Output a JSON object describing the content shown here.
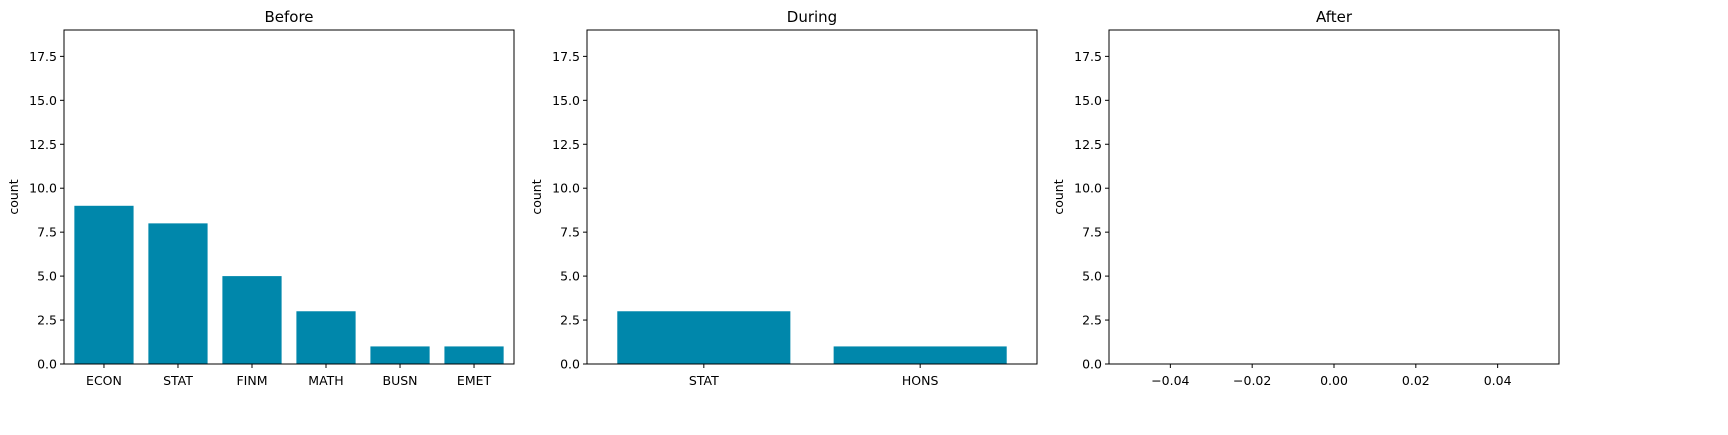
{
  "chart_data": [
    {
      "type": "bar",
      "title": "Before",
      "ylabel": "count",
      "xlabel": "",
      "categories": [
        "ECON",
        "STAT",
        "FINM",
        "MATH",
        "BUSN",
        "EMET"
      ],
      "values": [
        9,
        8,
        5,
        3,
        1,
        1
      ],
      "ylim": [
        0,
        19
      ],
      "yticks": [
        "0.0",
        "2.5",
        "5.0",
        "7.5",
        "10.0",
        "12.5",
        "15.0",
        "17.5"
      ],
      "color": "#0087ab",
      "grid": false
    },
    {
      "type": "bar",
      "title": "During",
      "ylabel": "count",
      "xlabel": "",
      "categories": [
        "STAT",
        "HONS"
      ],
      "values": [
        3,
        1
      ],
      "ylim": [
        0,
        19
      ],
      "yticks": [
        "0.0",
        "2.5",
        "5.0",
        "7.5",
        "10.0",
        "12.5",
        "15.0",
        "17.5"
      ],
      "color": "#0087ab",
      "grid": false
    },
    {
      "type": "bar",
      "title": "After",
      "ylabel": "count",
      "xlabel": "",
      "categories": [],
      "values": [],
      "ylim": [
        0,
        19
      ],
      "xlim": [
        -0.055,
        0.055
      ],
      "yticks": [
        "0.0",
        "2.5",
        "5.0",
        "7.5",
        "10.0",
        "12.5",
        "15.0",
        "17.5"
      ],
      "xticks": [
        "−0.04",
        "−0.02",
        "0.00",
        "0.02",
        "0.04"
      ],
      "color": "#0087ab",
      "grid": false
    }
  ]
}
